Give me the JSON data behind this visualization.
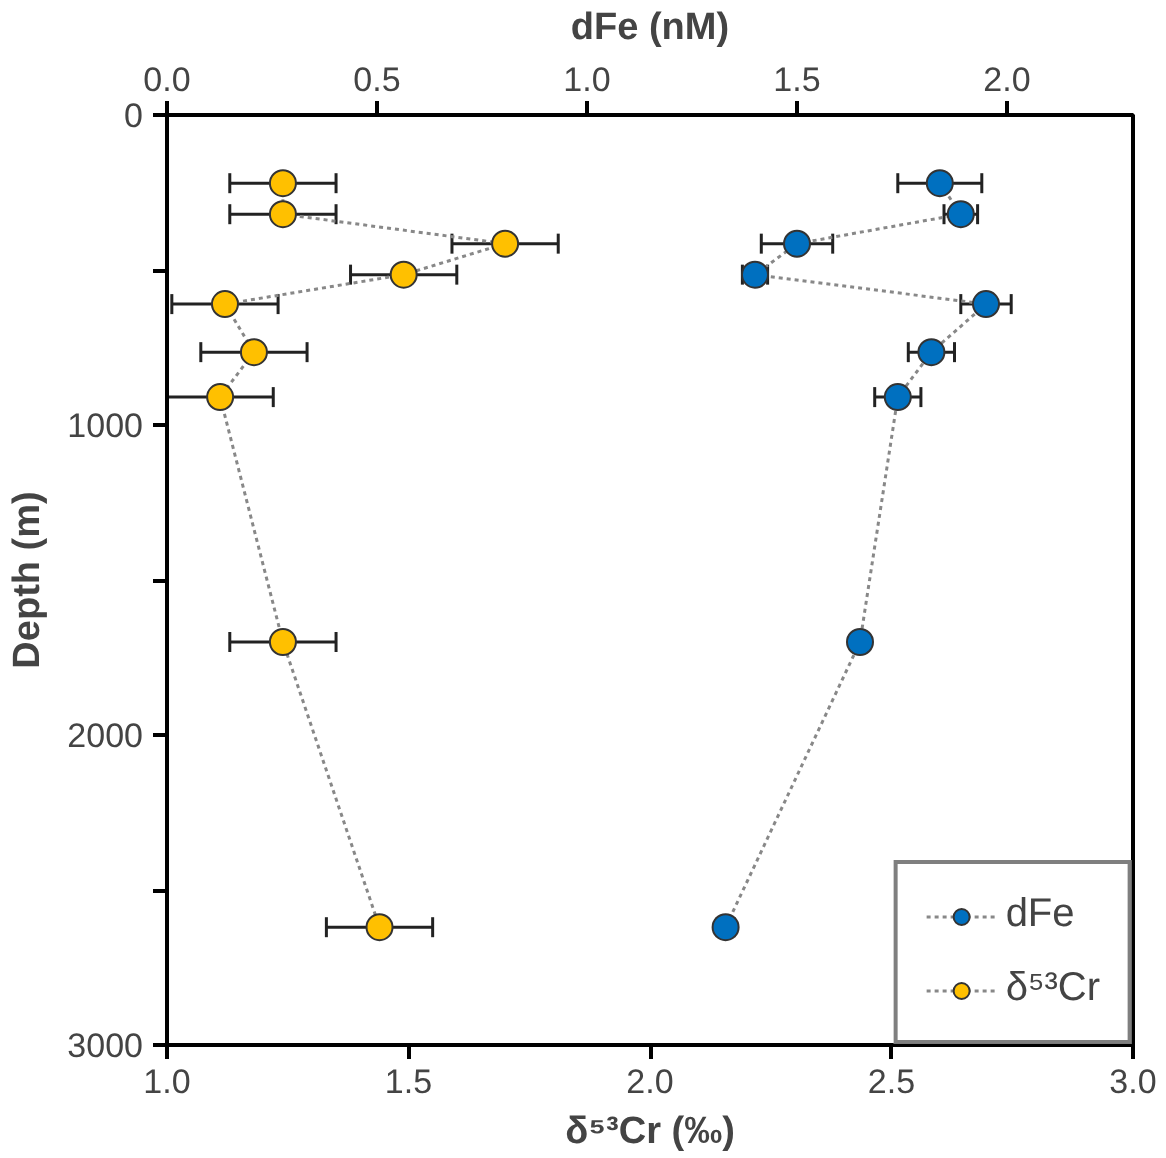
{
  "chart_data": {
    "type": "line",
    "xlabel": "δ⁵³Cr (‰)",
    "x2label": "dFe (nM)",
    "ylabel": "Depth (m)",
    "xlim": [
      1.0,
      3.0
    ],
    "xticks": [
      {
        "value": 1.0,
        "label": "1.0"
      },
      {
        "value": 1.5,
        "label": "1.5"
      },
      {
        "value": 2.0,
        "label": "2.0"
      },
      {
        "value": 2.5,
        "label": "2.5"
      },
      {
        "value": 3.0,
        "label": "3.0"
      }
    ],
    "x2lim": [
      0.0,
      2.3
    ],
    "x2ticks": [
      {
        "value": 0.0,
        "label": "0.0"
      },
      {
        "value": 0.5,
        "label": "0.5"
      },
      {
        "value": 1.0,
        "label": "1.0"
      },
      {
        "value": 1.5,
        "label": "1.5"
      },
      {
        "value": 2.0,
        "label": "2.0"
      }
    ],
    "ylim": [
      3000,
      0
    ],
    "yticks": [
      0,
      {
        "value": 500,
        "label": null
      },
      1000,
      {
        "value": 1500,
        "label": null
      },
      2000,
      {
        "value": 2500,
        "label": null
      },
      3000
    ],
    "marker": "circle",
    "line_style": "dotted",
    "grid": false,
    "legend": "bottom right",
    "series": [
      {
        "name": "dFe",
        "color": "#0070c0",
        "axis": "x2",
        "x": [
          1.84,
          1.89,
          1.5,
          1.4,
          1.95,
          1.82,
          1.74,
          1.65,
          1.33
        ],
        "values": [
          220,
          320,
          415,
          515,
          610,
          765,
          910,
          1700,
          2620
        ],
        "xerrors": [
          0.1,
          0.04,
          0.085,
          0.03,
          0.06,
          0.055,
          0.055,
          0.02,
          0.02
        ]
      },
      {
        "name": "δ⁵³Cr",
        "color": "#ffc000",
        "x": [
          1.24,
          1.24,
          1.7,
          1.49,
          1.12,
          1.18,
          1.11,
          1.24,
          1.44
        ],
        "values": [
          220,
          320,
          415,
          515,
          610,
          765,
          910,
          1700,
          2620
        ],
        "xerrors": [
          0.11,
          0.11,
          0.11,
          0.11,
          0.11,
          0.11,
          0.11,
          0.11,
          0.11
        ]
      }
    ]
  }
}
